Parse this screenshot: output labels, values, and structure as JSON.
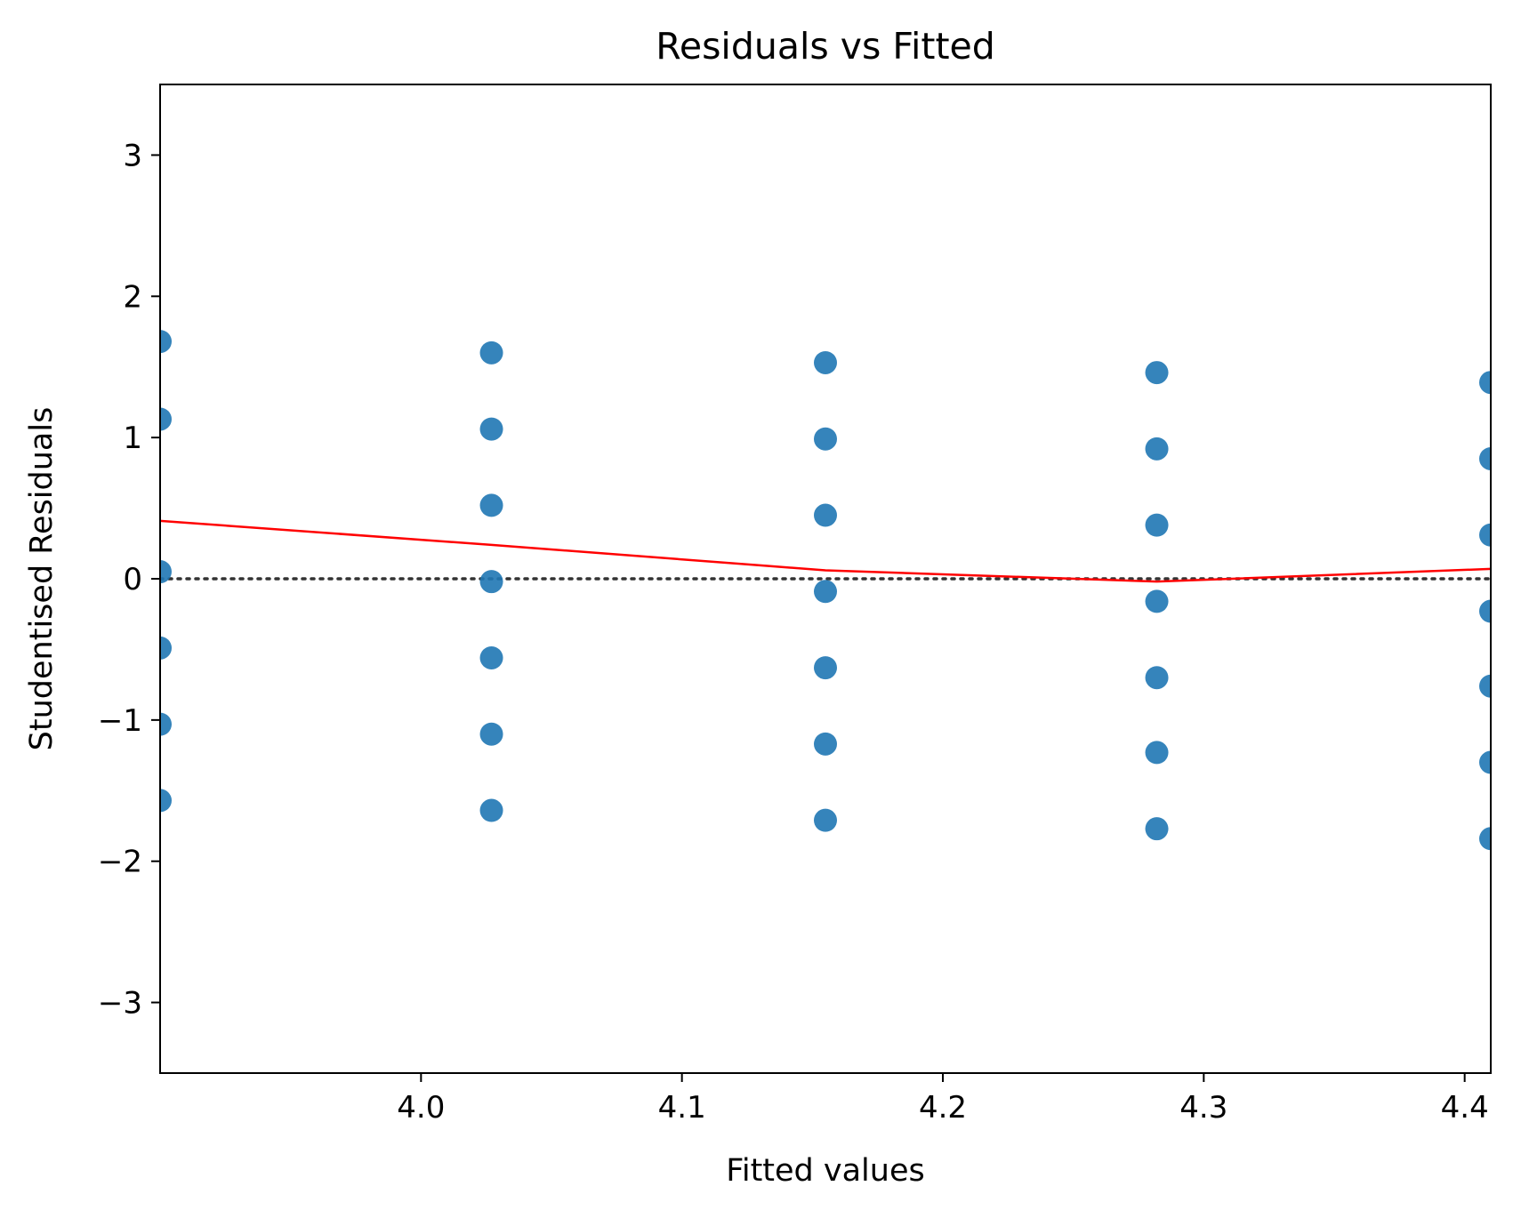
{
  "chart_data": {
    "type": "scatter",
    "title": "Residuals vs Fitted",
    "xlabel": "Fitted values",
    "ylabel": "Studentised Residuals",
    "xlim": [
      3.9,
      4.41
    ],
    "ylim": [
      -3.5,
      3.5
    ],
    "x_ticks": [
      {
        "value": 4.0,
        "label": "4.0"
      },
      {
        "value": 4.1,
        "label": "4.1"
      },
      {
        "value": 4.2,
        "label": "4.2"
      },
      {
        "value": 4.3,
        "label": "4.3"
      },
      {
        "value": 4.4,
        "label": "4.4"
      }
    ],
    "y_ticks": [
      {
        "value": -3,
        "label": "−3"
      },
      {
        "value": -2,
        "label": "−2"
      },
      {
        "value": -1,
        "label": "−1"
      },
      {
        "value": 0,
        "label": "0"
      },
      {
        "value": 1,
        "label": "1"
      },
      {
        "value": 2,
        "label": "2"
      },
      {
        "value": 3,
        "label": "3"
      }
    ],
    "grid": false,
    "points": [
      {
        "x": 3.9,
        "y": 1.68
      },
      {
        "x": 3.9,
        "y": 1.13
      },
      {
        "x": 3.9,
        "y": 0.05
      },
      {
        "x": 3.9,
        "y": -0.49
      },
      {
        "x": 3.9,
        "y": -1.03
      },
      {
        "x": 3.9,
        "y": -1.57
      },
      {
        "x": 4.027,
        "y": 1.6
      },
      {
        "x": 4.027,
        "y": 1.06
      },
      {
        "x": 4.027,
        "y": 0.52
      },
      {
        "x": 4.027,
        "y": -0.02
      },
      {
        "x": 4.027,
        "y": -0.56
      },
      {
        "x": 4.027,
        "y": -1.1
      },
      {
        "x": 4.027,
        "y": -1.64
      },
      {
        "x": 4.155,
        "y": 1.53
      },
      {
        "x": 4.155,
        "y": 0.99
      },
      {
        "x": 4.155,
        "y": 0.45
      },
      {
        "x": 4.155,
        "y": -0.09
      },
      {
        "x": 4.155,
        "y": -0.63
      },
      {
        "x": 4.155,
        "y": -1.17
      },
      {
        "x": 4.155,
        "y": -1.71
      },
      {
        "x": 4.282,
        "y": 1.46
      },
      {
        "x": 4.282,
        "y": 0.92
      },
      {
        "x": 4.282,
        "y": 0.38
      },
      {
        "x": 4.282,
        "y": -0.16
      },
      {
        "x": 4.282,
        "y": -0.7
      },
      {
        "x": 4.282,
        "y": -1.23
      },
      {
        "x": 4.282,
        "y": -1.77
      },
      {
        "x": 4.41,
        "y": 1.39
      },
      {
        "x": 4.41,
        "y": 0.85
      },
      {
        "x": 4.41,
        "y": 0.31
      },
      {
        "x": 4.41,
        "y": -0.23
      },
      {
        "x": 4.41,
        "y": -0.76
      },
      {
        "x": 4.41,
        "y": -1.3
      },
      {
        "x": 4.41,
        "y": -1.84
      }
    ],
    "smooth_line": {
      "x": [
        3.9,
        4.027,
        4.155,
        4.282,
        4.41
      ],
      "y": [
        0.41,
        0.24,
        0.06,
        -0.02,
        0.07
      ]
    },
    "reference_line": {
      "y": 0
    },
    "colors": {
      "points": "#1f77b4",
      "smooth_line": "#ff0000",
      "reference_line": "#333333"
    }
  }
}
